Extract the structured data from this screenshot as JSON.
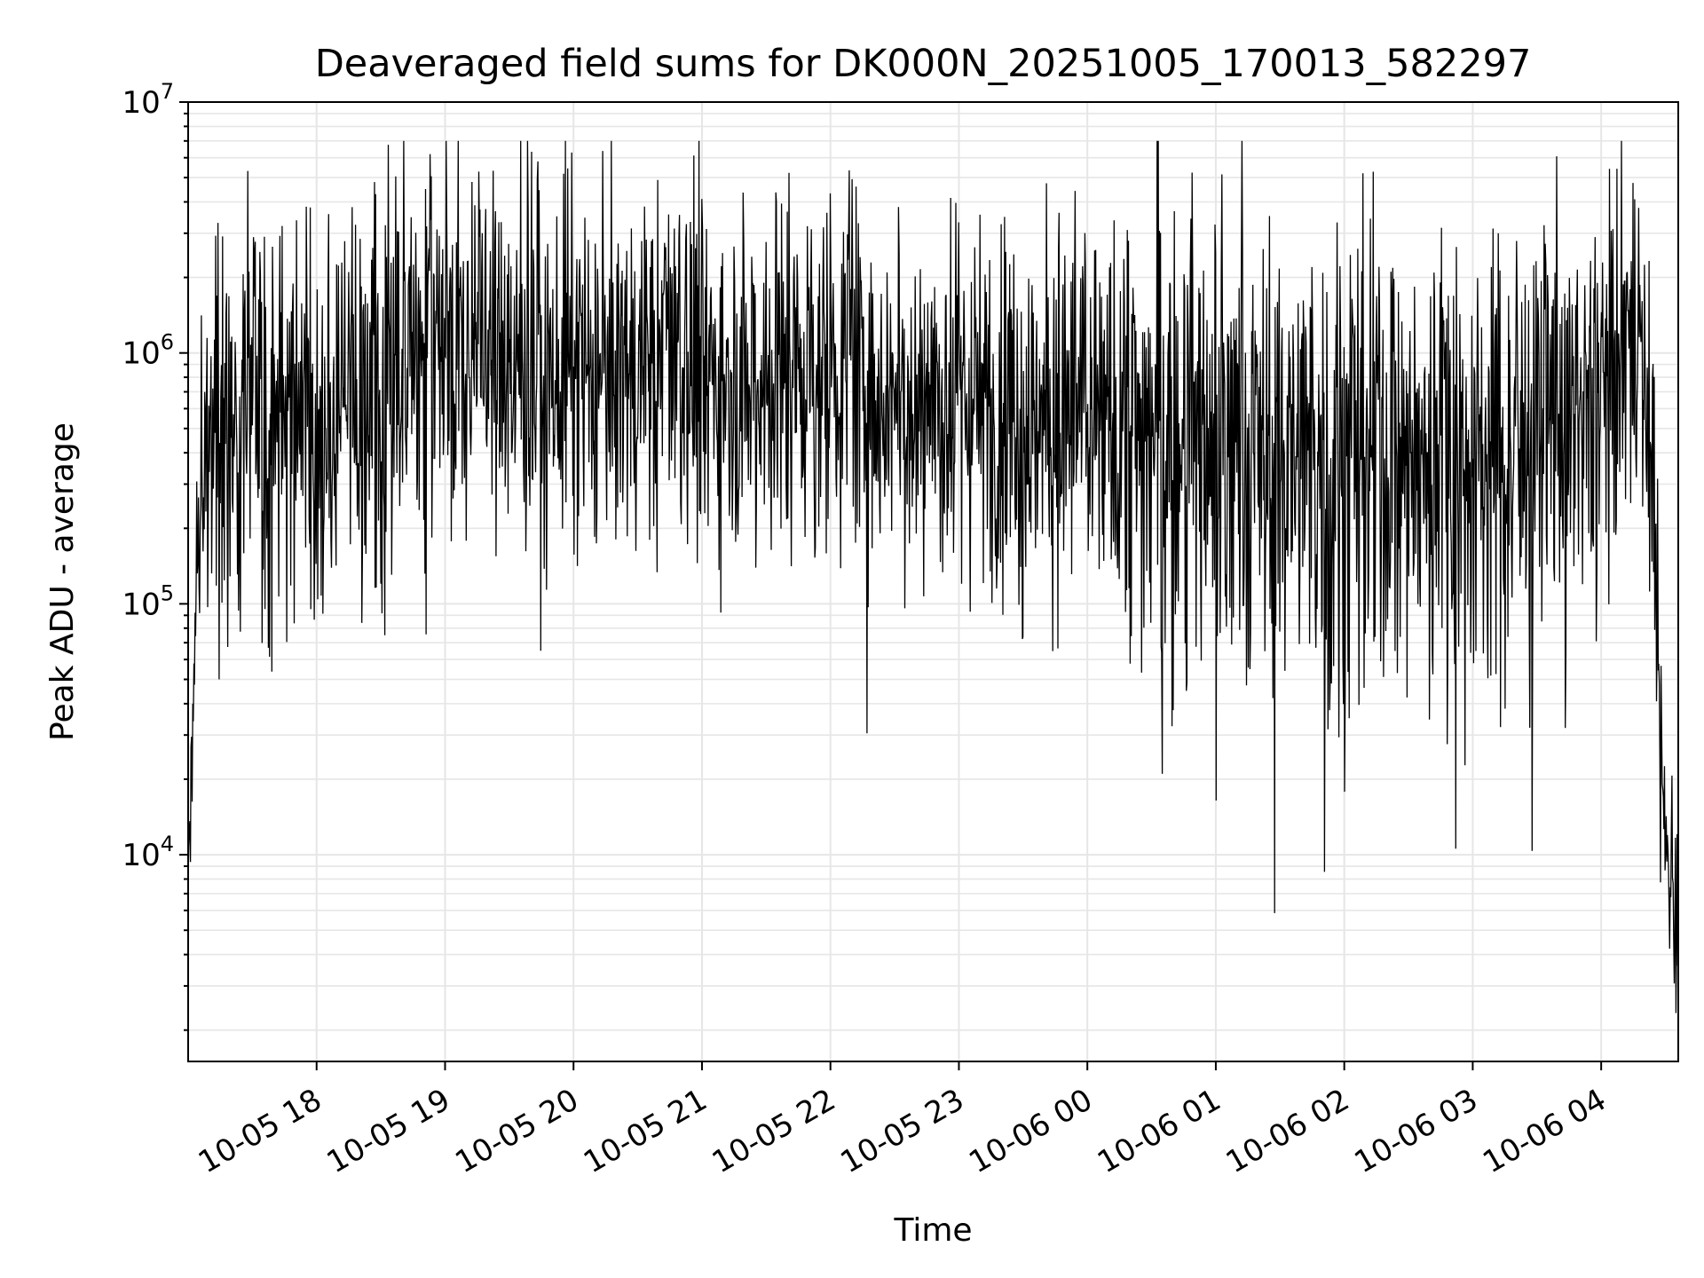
{
  "chart_data": {
    "type": "line",
    "title": "Deaveraged field sums for DK000N_20251005_170013_582297",
    "xlabel": "Time",
    "ylabel": "Peak ADU - average",
    "yscale": "log",
    "ylim": [
      1500,
      10000000
    ],
    "xlim_hours": [
      17.0,
      28.6
    ],
    "x_ticks": [
      {
        "hour": 18,
        "label": "10-05 18"
      },
      {
        "hour": 19,
        "label": "10-05 19"
      },
      {
        "hour": 20,
        "label": "10-05 20"
      },
      {
        "hour": 21,
        "label": "10-05 21"
      },
      {
        "hour": 22,
        "label": "10-05 22"
      },
      {
        "hour": 23,
        "label": "10-05 23"
      },
      {
        "hour": 24,
        "label": "10-06 00"
      },
      {
        "hour": 25,
        "label": "10-06 01"
      },
      {
        "hour": 26,
        "label": "10-06 02"
      },
      {
        "hour": 27,
        "label": "10-06 03"
      },
      {
        "hour": 28,
        "label": "10-06 04"
      }
    ],
    "y_ticks": [
      {
        "value": 10000,
        "base": "10",
        "exp": "4"
      },
      {
        "value": 100000,
        "base": "10",
        "exp": "5"
      },
      {
        "value": 1000000,
        "base": "10",
        "exp": "6"
      },
      {
        "value": 10000000,
        "base": "10",
        "exp": "7"
      }
    ],
    "grid": true,
    "line_color": "#000000",
    "grid_color": "#e6e6e6",
    "envelope": [
      {
        "hour": 17.0,
        "center": 9000,
        "spread": 0.15
      },
      {
        "hour": 17.03,
        "center": 25000,
        "spread": 0.2
      },
      {
        "hour": 17.08,
        "center": 150000,
        "spread": 0.3
      },
      {
        "hour": 17.15,
        "center": 500000,
        "spread": 0.45
      },
      {
        "hour": 17.5,
        "center": 550000,
        "spread": 0.5
      },
      {
        "hour": 18.0,
        "center": 500000,
        "spread": 0.5
      },
      {
        "hour": 18.5,
        "center": 700000,
        "spread": 0.5
      },
      {
        "hour": 19.0,
        "center": 1200000,
        "spread": 0.4
      },
      {
        "hour": 19.5,
        "center": 800000,
        "spread": 0.45
      },
      {
        "hour": 20.0,
        "center": 800000,
        "spread": 0.45
      },
      {
        "hour": 21.0,
        "center": 850000,
        "spread": 0.45
      },
      {
        "hour": 22.0,
        "center": 850000,
        "spread": 0.45
      },
      {
        "hour": 23.0,
        "center": 600000,
        "spread": 0.45
      },
      {
        "hour": 24.0,
        "center": 550000,
        "spread": 0.5
      },
      {
        "hour": 25.0,
        "center": 400000,
        "spread": 0.6
      },
      {
        "hour": 26.0,
        "center": 350000,
        "spread": 0.6
      },
      {
        "hour": 27.0,
        "center": 350000,
        "spread": 0.6
      },
      {
        "hour": 28.0,
        "center": 600000,
        "spread": 0.5
      },
      {
        "hour": 28.3,
        "center": 1500000,
        "spread": 0.35
      },
      {
        "hour": 28.42,
        "center": 300000,
        "spread": 0.4
      },
      {
        "hour": 28.46,
        "center": 20000,
        "spread": 0.25
      },
      {
        "hour": 28.6,
        "center": 5000,
        "spread": 0.3
      }
    ],
    "spikes": [
      {
        "hour": 17.23,
        "value": 3300000
      },
      {
        "hour": 17.95,
        "value": 3800000
      },
      {
        "hour": 18.45,
        "value": 4800000
      },
      {
        "hour": 18.85,
        "value": 4500000
      },
      {
        "hour": 19.01,
        "value": 7000000
      },
      {
        "hour": 19.72,
        "value": 4900000
      },
      {
        "hour": 22.2,
        "value": 4600000
      },
      {
        "hour": 24.32,
        "value": 2800000
      },
      {
        "hour": 25.0,
        "value": 2500000
      },
      {
        "hour": 28.26,
        "value": 4100000
      },
      {
        "hour": 17.24,
        "value": 50000
      },
      {
        "hour": 18.53,
        "value": 75000
      },
      {
        "hour": 24.77,
        "value": 45000
      },
      {
        "hour": 26.04,
        "value": 35000
      },
      {
        "hour": 27.72,
        "value": 32000
      }
    ]
  }
}
